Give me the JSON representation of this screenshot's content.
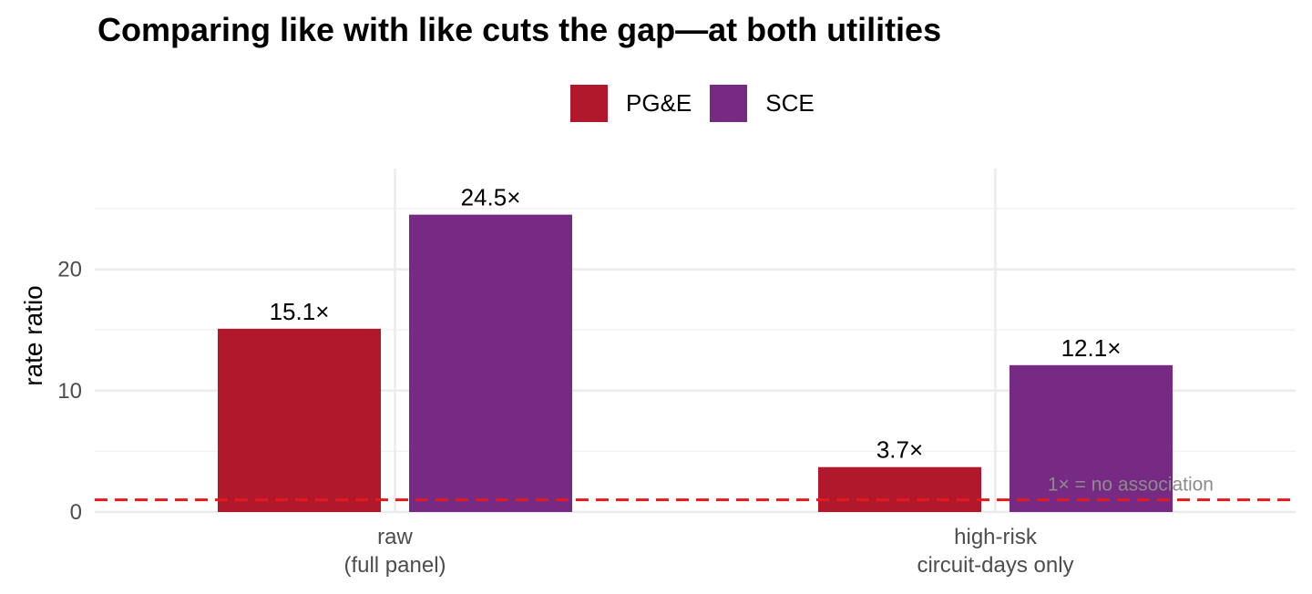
{
  "chart_data": {
    "type": "bar",
    "title": "Comparing like with like cuts the gap—at both utilities",
    "xlabel": "",
    "ylabel": "rate ratio",
    "categories": [
      "raw\n(full panel)",
      "high-risk\ncircuit-days only"
    ],
    "series": [
      {
        "name": "PG&E",
        "color": "#B2182B",
        "values": [
          15.1,
          3.7
        ],
        "labels": [
          "15.1×",
          "3.7×"
        ]
      },
      {
        "name": "SCE",
        "color": "#762A83",
        "values": [
          24.5,
          12.1
        ],
        "labels": [
          "24.5×",
          "12.1×"
        ]
      }
    ],
    "yticks": [
      0,
      10,
      20
    ],
    "ylim": [
      0,
      28.3
    ],
    "grid": true,
    "legend_position": "top",
    "reference_line": {
      "y": 1,
      "color": "#E41A1C",
      "style": "dashed",
      "label": "1× = no association"
    }
  }
}
